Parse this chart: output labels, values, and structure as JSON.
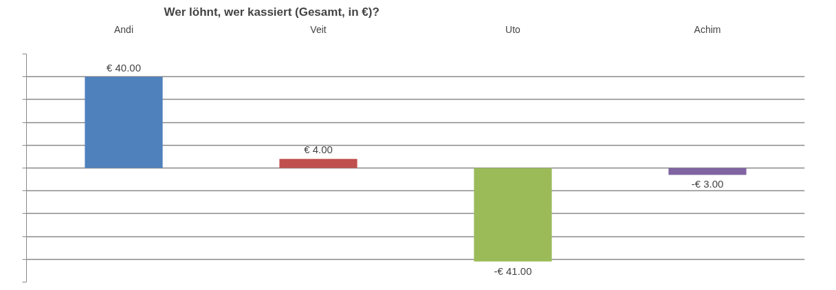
{
  "chart_data": {
    "type": "bar",
    "title": "Wer löhnt, wer kassiert (Gesamt, in €)?",
    "categories": [
      "Andi",
      "Veit",
      "Uto",
      "Achim"
    ],
    "values": [
      40,
      4,
      -41,
      -3
    ],
    "colors": [
      "#4f81bd",
      "#c0504d",
      "#9bbb59",
      "#8064a2"
    ],
    "value_labels": [
      "€ 40.00",
      "€ 4.00",
      "-€ 41.00",
      "-€ 3.00"
    ],
    "ylim": [
      -50,
      50
    ],
    "yticks": [
      {
        "value": -50,
        "label": null
      },
      {
        "value": -40,
        "label": null
      },
      {
        "value": -30,
        "label": null
      },
      {
        "value": -20,
        "label": null
      },
      {
        "value": -10,
        "label": null
      },
      {
        "value": 0,
        "label": null
      },
      {
        "value": 10,
        "label": null
      },
      {
        "value": 20,
        "label": null
      },
      {
        "value": 30,
        "label": null
      },
      {
        "value": 40,
        "label": null
      },
      {
        "value": 50,
        "label": null
      }
    ],
    "grid": "y",
    "tick_labels": "x"
  }
}
